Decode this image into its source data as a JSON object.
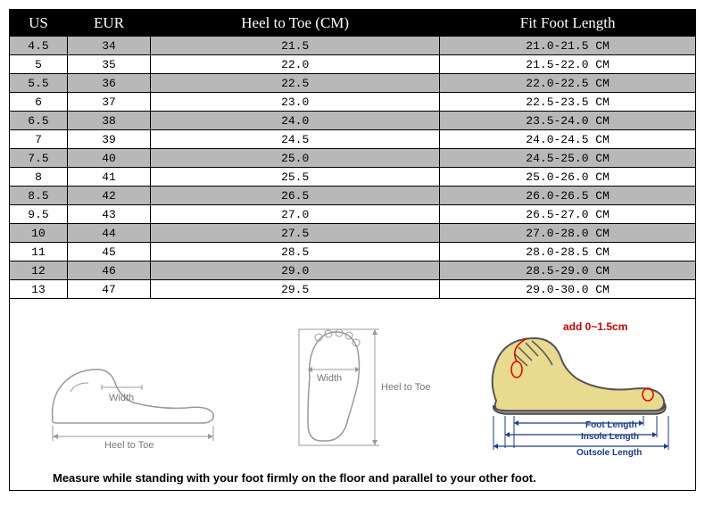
{
  "table": {
    "columns": [
      "US",
      "EUR",
      "Heel to Toe (CM)",
      "Fit Foot Length"
    ],
    "rows": [
      [
        "4.5",
        "34",
        "21.5",
        "21.0-21.5 CM"
      ],
      [
        "5",
        "35",
        "22.0",
        "21.5-22.0 CM"
      ],
      [
        "5.5",
        "36",
        "22.5",
        "22.0-22.5 CM"
      ],
      [
        "6",
        "37",
        "23.0",
        "22.5-23.5 CM"
      ],
      [
        "6.5",
        "38",
        "24.0",
        "23.5-24.0 CM"
      ],
      [
        "7",
        "39",
        "24.5",
        "24.0-24.5 CM"
      ],
      [
        "7.5",
        "40",
        "25.0",
        "24.5-25.0 CM"
      ],
      [
        "8",
        "41",
        "25.5",
        "25.0-26.0 CM"
      ],
      [
        "8.5",
        "42",
        "26.5",
        "26.0-26.5 CM"
      ],
      [
        "9.5",
        "43",
        "27.0",
        "26.5-27.0 CM"
      ],
      [
        "10",
        "44",
        "27.5",
        "27.0-28.0 CM"
      ],
      [
        "11",
        "45",
        "28.5",
        "28.0-28.5 CM"
      ],
      [
        "12",
        "46",
        "29.0",
        "28.5-29.0 CM"
      ],
      [
        "13",
        "47",
        "29.5",
        "29.0-30.0 CM"
      ]
    ],
    "header_bg": "#000000",
    "header_fg": "#ffffff",
    "row_alt_bg": "#b8b8b8",
    "row_plain_bg": "#ffffff",
    "border_color": "#000000"
  },
  "diagrams": {
    "side_foot": {
      "width_label": "Width",
      "heel_to_toe_label": "Heel to Toe"
    },
    "top_foot": {
      "width_label": "Width",
      "heel_to_toe_label": "Heel to Toe"
    },
    "shoe": {
      "add_label": "add 0~1.5cm",
      "foot_length_label": "Foot Length",
      "insole_length_label": "Insole Length",
      "outsole_length_label": "Outsole Length",
      "shoe_fill": "#e8da8f",
      "sole_fill": "#888888"
    }
  },
  "measure_instruction": "Measure while standing with your foot firmly on the floor and parallel to your other foot."
}
